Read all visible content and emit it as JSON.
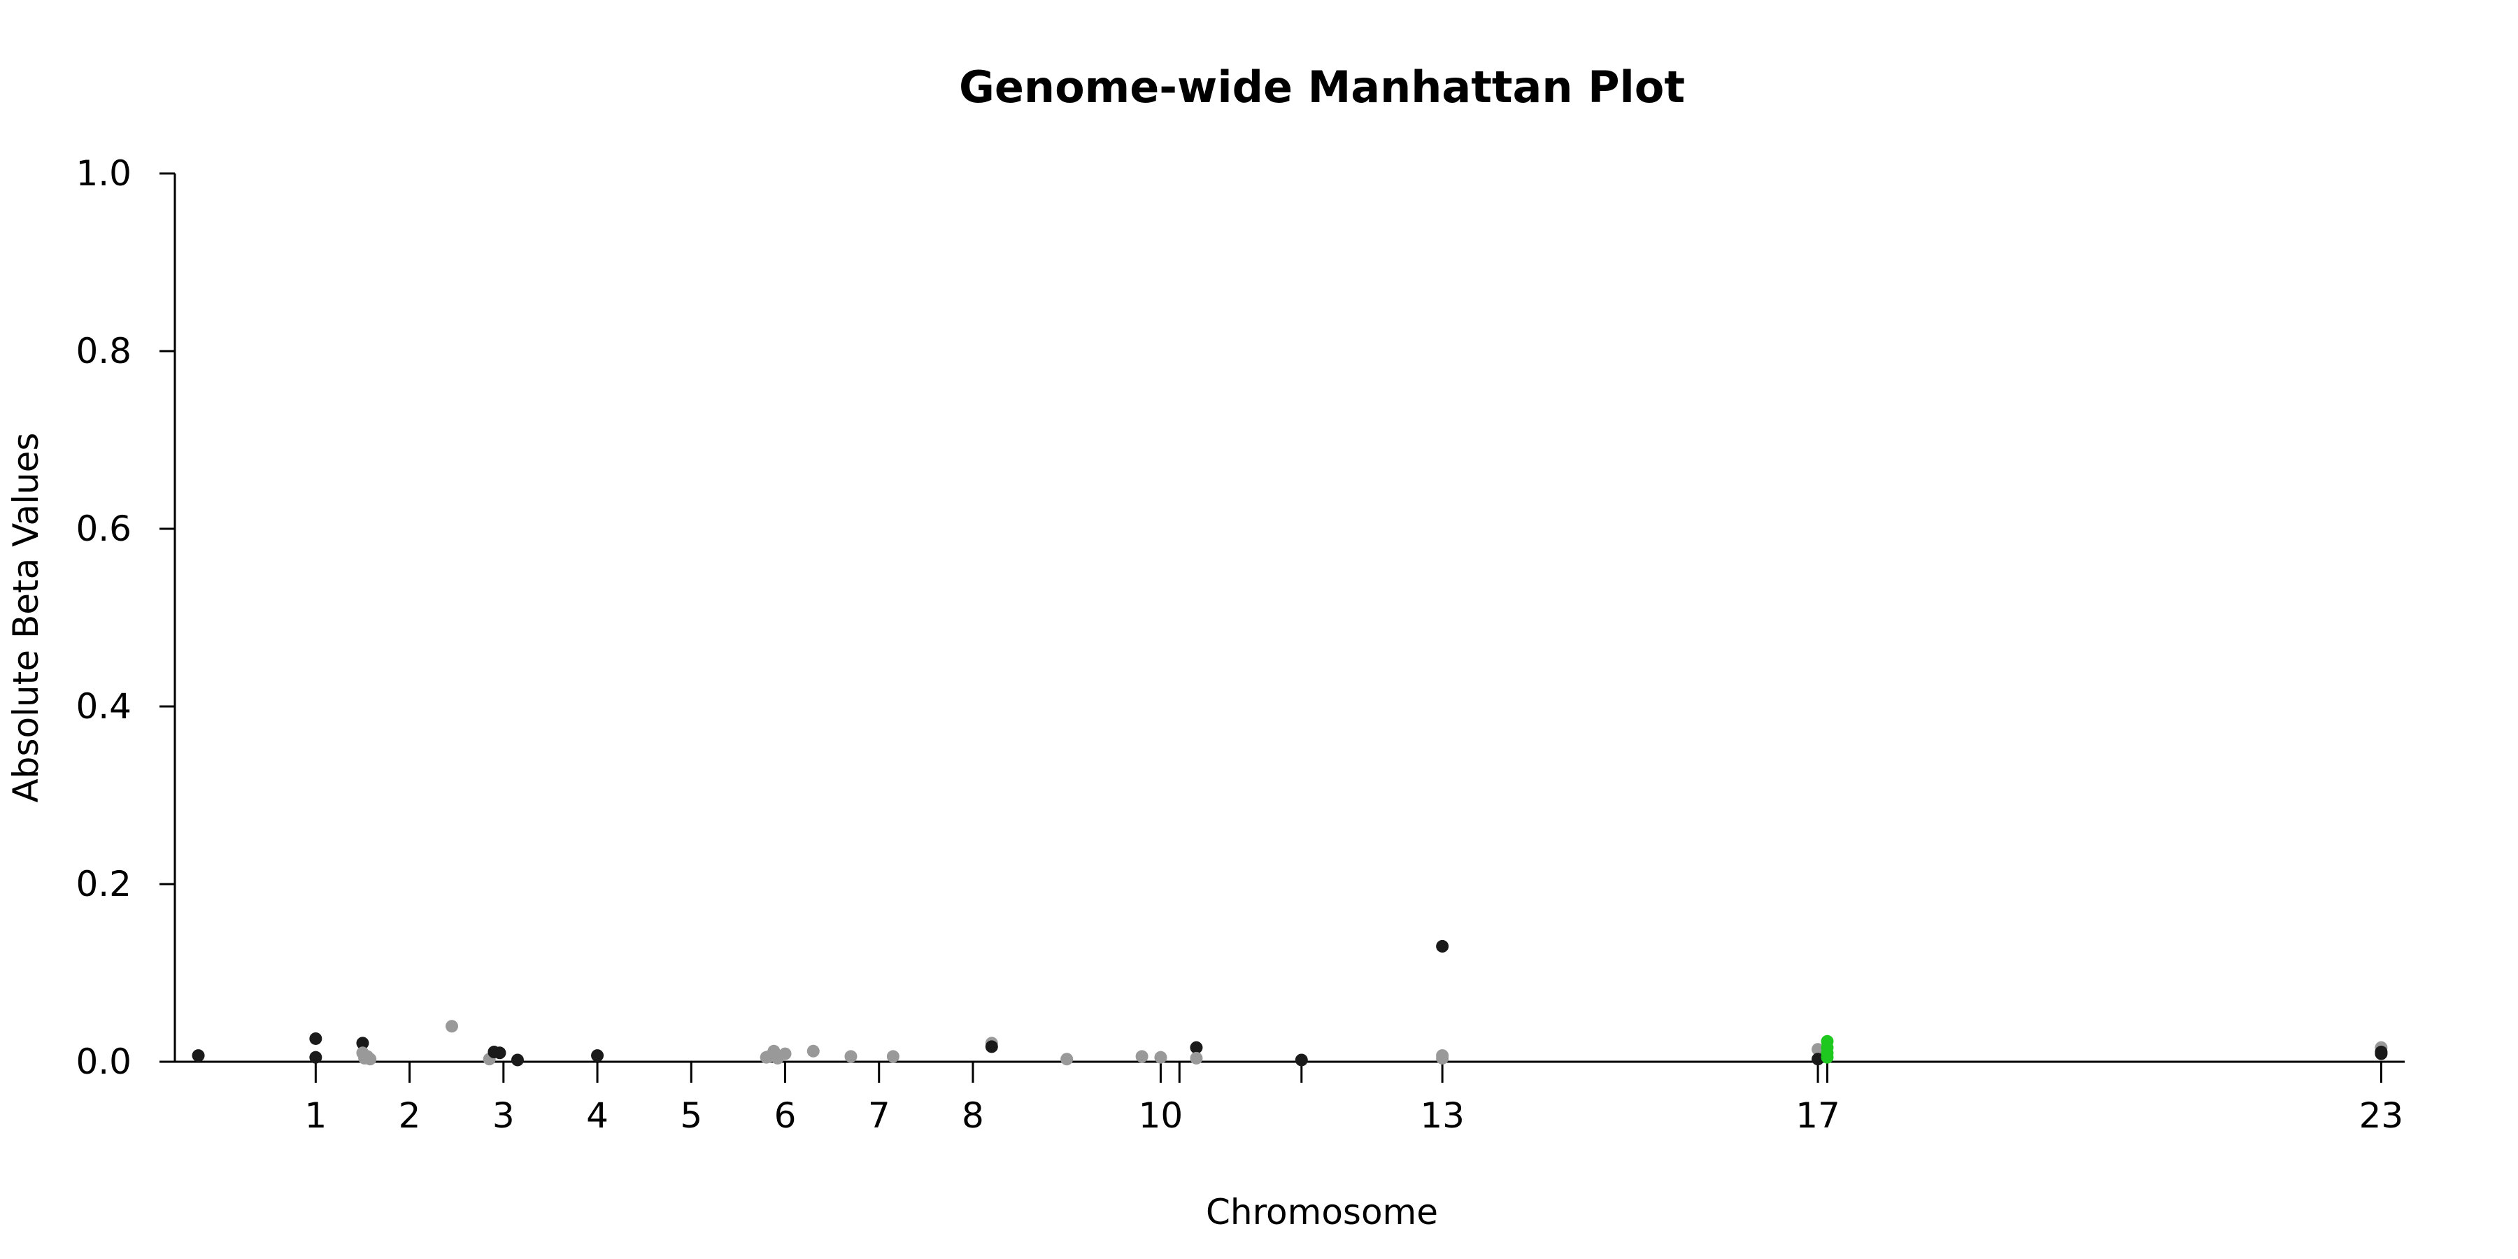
{
  "chart_data": {
    "type": "scatter",
    "title": "Genome-wide Manhattan Plot",
    "xlabel": "Chromosome",
    "ylabel": "Absolute Beta Values",
    "ylim": [
      0,
      1
    ],
    "yticks": [
      "0.0",
      "0.2",
      "0.4",
      "0.6",
      "0.8",
      "1.0"
    ],
    "xlim": [
      -0.5,
      23.25
    ],
    "xticks": [
      {
        "pos": 1,
        "label": "1"
      },
      {
        "pos": 2,
        "label": "2"
      },
      {
        "pos": 3,
        "label": "3"
      },
      {
        "pos": 4,
        "label": "4"
      },
      {
        "pos": 5,
        "label": "5"
      },
      {
        "pos": 6,
        "label": "6"
      },
      {
        "pos": 7,
        "label": "7"
      },
      {
        "pos": 8,
        "label": "8"
      },
      {
        "pos": 10,
        "label": "10"
      },
      {
        "pos": 13,
        "label": "13"
      },
      {
        "pos": 17,
        "label": "17"
      },
      {
        "pos": 23,
        "label": "23"
      }
    ],
    "extra_ticks": [
      10.2,
      11.5,
      17.1
    ],
    "grid": false,
    "colors": {
      "dark": "#1a1a1a",
      "light": "#999999",
      "highlight": "#1ec81e"
    },
    "points": [
      {
        "x": -0.25,
        "y": 0.007,
        "c": "dark"
      },
      {
        "x": 1.0,
        "y": 0.026,
        "c": "dark"
      },
      {
        "x": 1.0,
        "y": 0.005,
        "c": "dark"
      },
      {
        "x": 1.5,
        "y": 0.021,
        "c": "dark"
      },
      {
        "x": 1.5,
        "y": 0.01,
        "c": "light"
      },
      {
        "x": 1.52,
        "y": 0.004,
        "c": "light"
      },
      {
        "x": 1.55,
        "y": 0.006,
        "c": "light"
      },
      {
        "x": 1.58,
        "y": 0.003,
        "c": "light"
      },
      {
        "x": 2.45,
        "y": 0.04,
        "c": "light"
      },
      {
        "x": 2.85,
        "y": 0.003,
        "c": "light"
      },
      {
        "x": 2.9,
        "y": 0.011,
        "c": "dark"
      },
      {
        "x": 2.96,
        "y": 0.01,
        "c": "dark"
      },
      {
        "x": 3.15,
        "y": 0.002,
        "c": "dark"
      },
      {
        "x": 4.0,
        "y": 0.007,
        "c": "dark"
      },
      {
        "x": 5.8,
        "y": 0.005,
        "c": "light"
      },
      {
        "x": 5.83,
        "y": 0.006,
        "c": "light"
      },
      {
        "x": 5.88,
        "y": 0.012,
        "c": "light"
      },
      {
        "x": 5.92,
        "y": 0.004,
        "c": "light"
      },
      {
        "x": 6.0,
        "y": 0.009,
        "c": "light"
      },
      {
        "x": 6.3,
        "y": 0.012,
        "c": "light"
      },
      {
        "x": 6.7,
        "y": 0.006,
        "c": "light"
      },
      {
        "x": 7.15,
        "y": 0.006,
        "c": "light"
      },
      {
        "x": 8.2,
        "y": 0.021,
        "c": "light"
      },
      {
        "x": 8.2,
        "y": 0.017,
        "c": "dark"
      },
      {
        "x": 9.0,
        "y": 0.003,
        "c": "light"
      },
      {
        "x": 9.8,
        "y": 0.006,
        "c": "light"
      },
      {
        "x": 10.0,
        "y": 0.005,
        "c": "light"
      },
      {
        "x": 10.38,
        "y": 0.016,
        "c": "dark"
      },
      {
        "x": 10.38,
        "y": 0.004,
        "c": "light"
      },
      {
        "x": 11.5,
        "y": 0.002,
        "c": "dark"
      },
      {
        "x": 13.0,
        "y": 0.13,
        "c": "dark"
      },
      {
        "x": 13.0,
        "y": 0.007,
        "c": "light"
      },
      {
        "x": 13.0,
        "y": 0.004,
        "c": "light"
      },
      {
        "x": 17.0,
        "y": 0.014,
        "c": "light"
      },
      {
        "x": 17.0,
        "y": 0.003,
        "c": "dark"
      },
      {
        "x": 17.1,
        "y": 0.023,
        "c": "highlight"
      },
      {
        "x": 17.1,
        "y": 0.016,
        "c": "highlight"
      },
      {
        "x": 17.1,
        "y": 0.01,
        "c": "highlight"
      },
      {
        "x": 17.1,
        "y": 0.005,
        "c": "highlight"
      },
      {
        "x": 23.0,
        "y": 0.016,
        "c": "light"
      },
      {
        "x": 23.0,
        "y": 0.011,
        "c": "dark"
      },
      {
        "x": 23.0,
        "y": 0.009,
        "c": "dark"
      }
    ]
  }
}
